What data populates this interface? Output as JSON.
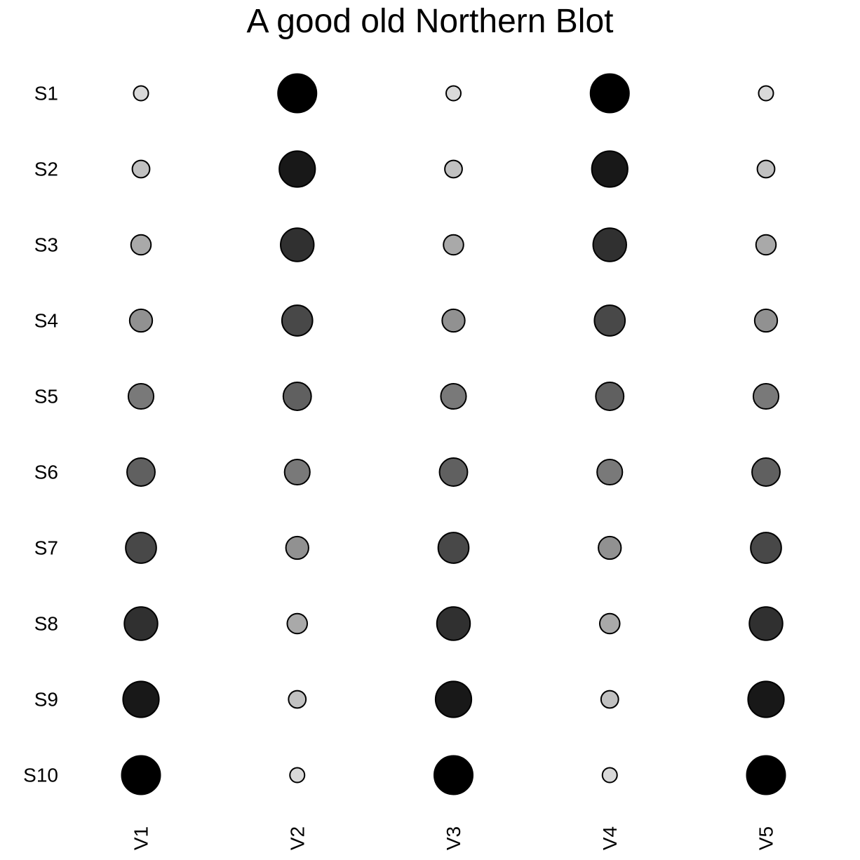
{
  "chart_data": {
    "type": "scatter",
    "title": "A good old Northern Blot",
    "xlabel": "",
    "ylabel": "",
    "columns": [
      "V1",
      "V2",
      "V3",
      "V4",
      "V5"
    ],
    "rows": [
      "S1",
      "S2",
      "S3",
      "S4",
      "S5",
      "S6",
      "S7",
      "S8",
      "S9",
      "S10"
    ],
    "values": [
      [
        1,
        10,
        1,
        10,
        1
      ],
      [
        2,
        9,
        2,
        9,
        2
      ],
      [
        3,
        8,
        3,
        8,
        3
      ],
      [
        4,
        7,
        4,
        7,
        4
      ],
      [
        5,
        6,
        5,
        6,
        5
      ],
      [
        6,
        5,
        6,
        5,
        6
      ],
      [
        7,
        4,
        7,
        4,
        7
      ],
      [
        8,
        3,
        8,
        3,
        8
      ],
      [
        9,
        2,
        9,
        2,
        9
      ],
      [
        10,
        1,
        10,
        1,
        10
      ]
    ],
    "value_range": [
      1,
      10
    ],
    "encoding": "size and fill darkness increase with value",
    "grid": false,
    "legend": "none",
    "colors": {
      "low": "#d9d9d9",
      "high": "#000000",
      "stroke": "#000000"
    }
  }
}
